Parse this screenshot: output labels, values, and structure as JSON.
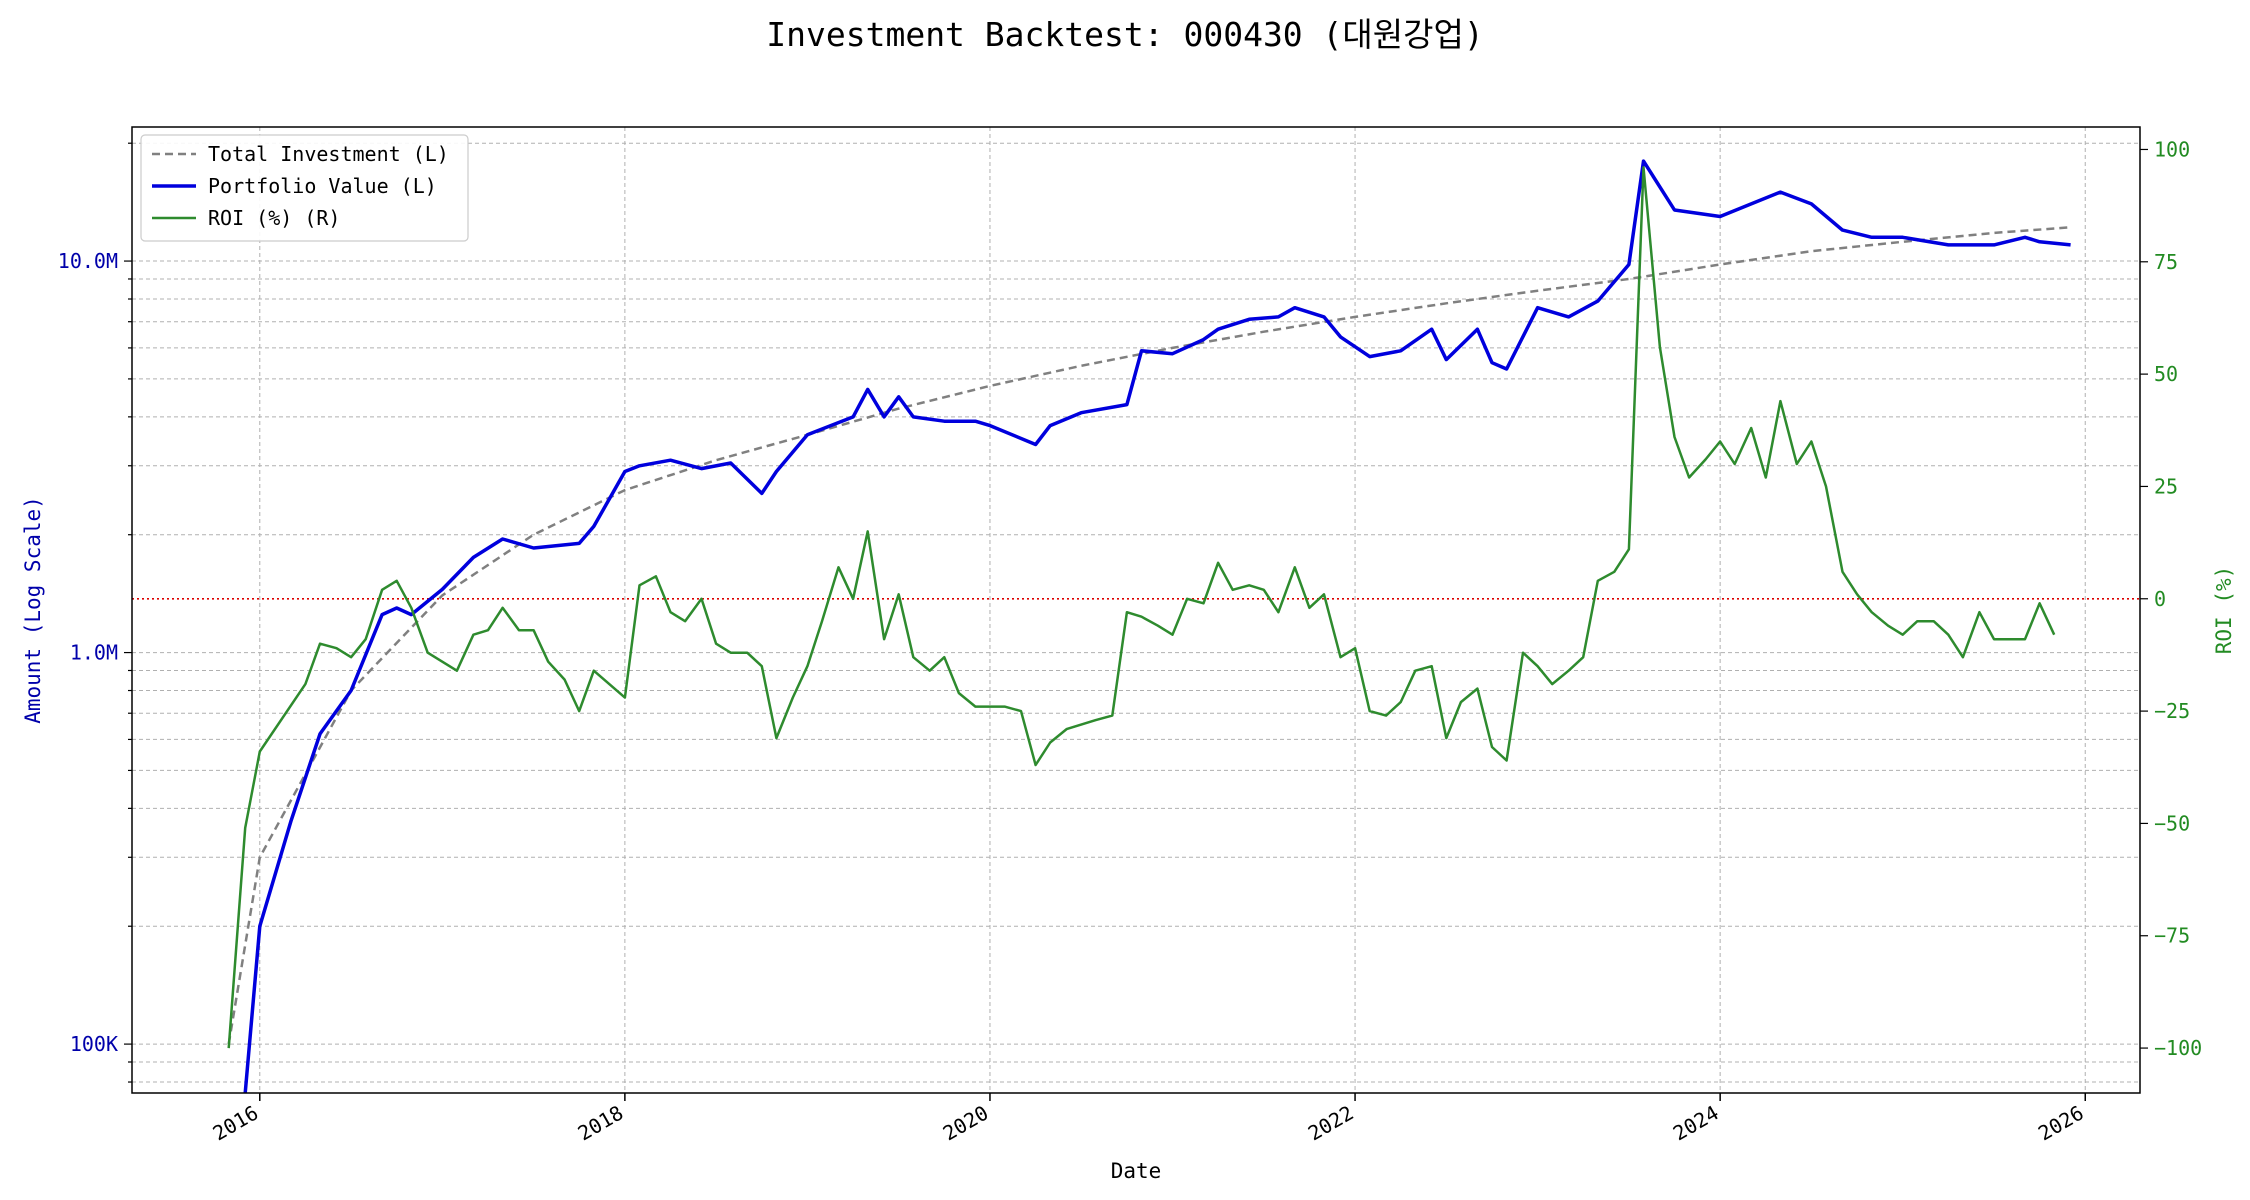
{
  "chart_data": {
    "type": "line",
    "title": "Investment Backtest: 000430 (대원강업)",
    "xlabel": "Date",
    "ylabel_left": "Amount (Log Scale)",
    "ylabel_right": "ROI (%)",
    "y_scale_left": "log",
    "ylim_left": [
      75000,
      22000000
    ],
    "ylim_right": [
      -110,
      105
    ],
    "xlim": [
      2015.3,
      2026.3
    ],
    "grid": true,
    "legend_position": "top-left",
    "x_ticks": [
      {
        "value": 2016,
        "label": "2016"
      },
      {
        "value": 2018,
        "label": "2018"
      },
      {
        "value": 2020,
        "label": "2020"
      },
      {
        "value": 2022,
        "label": "2022"
      },
      {
        "value": 2024,
        "label": "2024"
      },
      {
        "value": 2026,
        "label": "2026"
      }
    ],
    "y_ticks_left": [
      {
        "value": 100000,
        "label": "100K"
      },
      {
        "value": 1000000,
        "label": "1.0M"
      },
      {
        "value": 10000000,
        "label": "10.0M"
      }
    ],
    "y_ticks_right": [
      {
        "value": -100,
        "label": "−100"
      },
      {
        "value": -75,
        "label": "−75"
      },
      {
        "value": -50,
        "label": "−50"
      },
      {
        "value": -25,
        "label": "−25"
      },
      {
        "value": 0,
        "label": "0"
      },
      {
        "value": 25,
        "label": "25"
      },
      {
        "value": 50,
        "label": "50"
      },
      {
        "value": 75,
        "label": "75"
      },
      {
        "value": 100,
        "label": "100"
      }
    ],
    "colors": {
      "investment": "#808080",
      "portfolio": "#0000dd",
      "roi": "#2e8b2e",
      "zero_line": "#dd0000",
      "left_axis": "#0000aa",
      "right_axis": "#228b22"
    },
    "series": [
      {
        "name": "Total Investment (L)",
        "axis": "left",
        "x": [
          2015.83,
          2016.0,
          2016.5,
          2017.0,
          2017.5,
          2018.0,
          2018.5,
          2019.0,
          2019.5,
          2020.0,
          2020.5,
          2021.0,
          2021.5,
          2022.0,
          2022.5,
          2023.0,
          2023.5,
          2024.0,
          2024.5,
          2025.0,
          2025.5,
          2025.92
        ],
        "values": [
          100000,
          300000,
          800000,
          1400000,
          2000000,
          2600000,
          3100000,
          3600000,
          4200000,
          4800000,
          5400000,
          6000000,
          6600000,
          7200000,
          7800000,
          8400000,
          9000000,
          9800000,
          10600000,
          11200000,
          11800000,
          12200000
        ]
      },
      {
        "name": "Portfolio Value (L)",
        "axis": "left",
        "x": [
          2015.92,
          2016.0,
          2016.17,
          2016.33,
          2016.5,
          2016.67,
          2016.75,
          2016.83,
          2017.0,
          2017.17,
          2017.33,
          2017.5,
          2017.75,
          2017.83,
          2018.0,
          2018.08,
          2018.25,
          2018.42,
          2018.58,
          2018.75,
          2018.83,
          2019.0,
          2019.25,
          2019.33,
          2019.42,
          2019.5,
          2019.58,
          2019.75,
          2019.92,
          2020.0,
          2020.25,
          2020.33,
          2020.5,
          2020.75,
          2020.83,
          2021.0,
          2021.17,
          2021.25,
          2021.42,
          2021.58,
          2021.67,
          2021.83,
          2021.92,
          2022.08,
          2022.25,
          2022.42,
          2022.5,
          2022.67,
          2022.75,
          2022.83,
          2023.0,
          2023.17,
          2023.33,
          2023.5,
          2023.58,
          2023.75,
          2024.0,
          2024.17,
          2024.33,
          2024.5,
          2024.67,
          2024.83,
          2025.0,
          2025.25,
          2025.5,
          2025.67,
          2025.75,
          2025.92
        ],
        "values": [
          60000,
          200000,
          370000,
          620000,
          800000,
          1250000,
          1300000,
          1250000,
          1450000,
          1750000,
          1950000,
          1850000,
          1900000,
          2100000,
          2900000,
          3000000,
          3100000,
          2950000,
          3050000,
          2550000,
          2900000,
          3600000,
          4000000,
          4700000,
          4000000,
          4500000,
          4000000,
          3900000,
          3900000,
          3800000,
          3400000,
          3800000,
          4100000,
          4300000,
          5900000,
          5800000,
          6300000,
          6700000,
          7100000,
          7200000,
          7600000,
          7200000,
          6400000,
          5700000,
          5900000,
          6700000,
          5600000,
          6700000,
          5500000,
          5300000,
          7600000,
          7200000,
          7900000,
          9800000,
          18000000,
          13500000,
          13000000,
          14000000,
          15000000,
          14000000,
          12000000,
          11500000,
          11500000,
          11000000,
          11000000,
          11500000,
          11200000,
          11000000
        ]
      },
      {
        "name": "ROI (%) (R)",
        "axis": "right",
        "x": [
          2015.83,
          2015.92,
          2016.0,
          2016.25,
          2016.33,
          2016.42,
          2016.5,
          2016.58,
          2016.67,
          2016.75,
          2016.83,
          2016.92,
          2017.0,
          2017.08,
          2017.17,
          2017.25,
          2017.33,
          2017.42,
          2017.5,
          2017.58,
          2017.67,
          2017.75,
          2017.83,
          2018.0,
          2018.08,
          2018.17,
          2018.25,
          2018.33,
          2018.42,
          2018.5,
          2018.58,
          2018.67,
          2018.75,
          2018.83,
          2018.92,
          2019.0,
          2019.08,
          2019.17,
          2019.25,
          2019.33,
          2019.42,
          2019.5,
          2019.58,
          2019.67,
          2019.75,
          2019.83,
          2019.92,
          2020.0,
          2020.08,
          2020.17,
          2020.25,
          2020.33,
          2020.42,
          2020.5,
          2020.58,
          2020.67,
          2020.75,
          2020.83,
          2020.92,
          2021.0,
          2021.08,
          2021.17,
          2021.25,
          2021.33,
          2021.42,
          2021.5,
          2021.58,
          2021.67,
          2021.75,
          2021.83,
          2021.92,
          2022.0,
          2022.08,
          2022.17,
          2022.25,
          2022.33,
          2022.42,
          2022.5,
          2022.58,
          2022.67,
          2022.75,
          2022.83,
          2022.92,
          2023.0,
          2023.08,
          2023.17,
          2023.25,
          2023.33,
          2023.42,
          2023.5,
          2023.58,
          2023.67,
          2023.75,
          2023.83,
          2023.92,
          2024.0,
          2024.08,
          2024.17,
          2024.25,
          2024.33,
          2024.42,
          2024.5,
          2024.58,
          2024.67,
          2024.75,
          2024.83,
          2024.92,
          2025.0,
          2025.08,
          2025.17,
          2025.25,
          2025.33,
          2025.42,
          2025.5,
          2025.58,
          2025.67,
          2025.75,
          2025.83
        ],
        "values": [
          -100,
          -51,
          -34,
          -19,
          -10,
          -11,
          -13,
          -9,
          2,
          4,
          -2,
          -12,
          -14,
          -16,
          -8,
          -7,
          -2,
          -7,
          -7,
          -14,
          -18,
          -25,
          -16,
          -22,
          3,
          5,
          -3,
          -5,
          0,
          -10,
          -12,
          -12,
          -15,
          -31,
          -22,
          -15,
          -5,
          7,
          0,
          15,
          -9,
          1,
          -13,
          -16,
          -13,
          -21,
          -24,
          -24,
          -24,
          -25,
          -37,
          -32,
          -29,
          -28,
          -27,
          -26,
          -3,
          -4,
          -6,
          -8,
          0,
          -1,
          8,
          2,
          3,
          2,
          -3,
          7,
          -2,
          1,
          -13,
          -11,
          -25,
          -26,
          -23,
          -16,
          -15,
          -31,
          -23,
          -20,
          -33,
          -36,
          -12,
          -15,
          -19,
          -16,
          -13,
          4,
          6,
          11,
          96,
          56,
          36,
          27,
          31,
          35,
          30,
          38,
          27,
          44,
          30,
          35,
          25,
          6,
          1,
          -3,
          -6,
          -8,
          -5,
          -5,
          -8,
          -13,
          -3,
          -9,
          -9,
          -9,
          -1,
          -8
        ]
      }
    ]
  }
}
